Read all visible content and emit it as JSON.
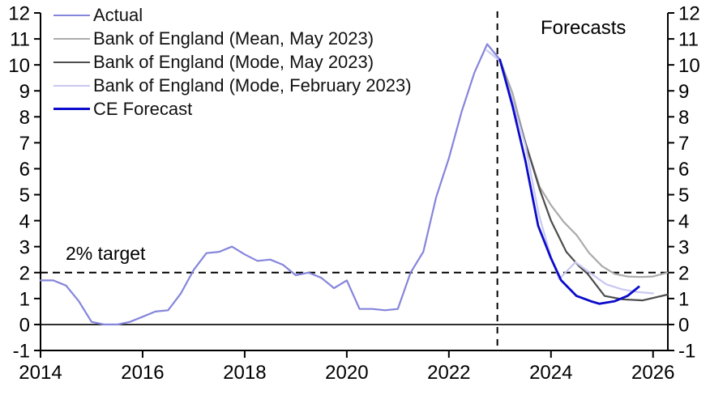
{
  "chart_data": {
    "type": "line",
    "title": "",
    "xlabel": "",
    "ylabel": "",
    "grid": false,
    "legend_position": "top-left inside plot",
    "x_axis": {
      "range": [
        2014,
        2026.29
      ],
      "ticks": [
        2014,
        2016,
        2018,
        2020,
        2022,
        2024,
        2026
      ]
    },
    "y_axis": {
      "range": [
        -1,
        12
      ],
      "ticks": [
        -1,
        0,
        1,
        2,
        3,
        4,
        5,
        6,
        7,
        8,
        9,
        10,
        11,
        12
      ],
      "sides": [
        "left",
        "right"
      ]
    },
    "reference_lines": {
      "zero_line_y": 0,
      "target_line_y": 2,
      "forecast_divider_x": 2022.95
    },
    "annotations": {
      "target_label": "2% target",
      "forecasts_label": "Forecasts"
    },
    "series": [
      {
        "name": "Actual",
        "color": "#8585DC",
        "width": 2.2,
        "points": [
          [
            2014.0,
            1.7
          ],
          [
            2014.25,
            1.7
          ],
          [
            2014.5,
            1.5
          ],
          [
            2014.75,
            0.9
          ],
          [
            2015.0,
            0.1
          ],
          [
            2015.25,
            0.0
          ],
          [
            2015.5,
            0.0
          ],
          [
            2015.75,
            0.1
          ],
          [
            2016.0,
            0.3
          ],
          [
            2016.25,
            0.5
          ],
          [
            2016.5,
            0.55
          ],
          [
            2016.75,
            1.2
          ],
          [
            2017.0,
            2.1
          ],
          [
            2017.25,
            2.75
          ],
          [
            2017.5,
            2.8
          ],
          [
            2017.75,
            3.0
          ],
          [
            2018.0,
            2.7
          ],
          [
            2018.25,
            2.45
          ],
          [
            2018.5,
            2.5
          ],
          [
            2018.75,
            2.3
          ],
          [
            2019.0,
            1.9
          ],
          [
            2019.25,
            2.0
          ],
          [
            2019.5,
            1.8
          ],
          [
            2019.75,
            1.4
          ],
          [
            2020.0,
            1.7
          ],
          [
            2020.25,
            0.6
          ],
          [
            2020.5,
            0.6
          ],
          [
            2020.75,
            0.55
          ],
          [
            2021.0,
            0.6
          ],
          [
            2021.25,
            2.0
          ],
          [
            2021.5,
            2.8
          ],
          [
            2021.75,
            4.9
          ],
          [
            2022.0,
            6.4
          ],
          [
            2022.25,
            8.2
          ],
          [
            2022.5,
            9.7
          ],
          [
            2022.75,
            10.8
          ],
          [
            2023.0,
            10.2
          ]
        ]
      },
      {
        "name": "Bank of England (Mean, May 2023)",
        "color": "#ABABAB",
        "width": 2.2,
        "points": [
          [
            2023.0,
            10.2
          ],
          [
            2023.25,
            8.9
          ],
          [
            2023.5,
            7.0
          ],
          [
            2023.78,
            5.3
          ],
          [
            2024.0,
            4.6
          ],
          [
            2024.25,
            3.95
          ],
          [
            2024.5,
            3.45
          ],
          [
            2024.75,
            2.75
          ],
          [
            2025.0,
            2.25
          ],
          [
            2025.25,
            1.95
          ],
          [
            2025.5,
            1.85
          ],
          [
            2025.75,
            1.83
          ],
          [
            2026.0,
            1.85
          ],
          [
            2026.28,
            2.0
          ]
        ]
      },
      {
        "name": "Bank of England (Mode, May 2023)",
        "color": "#4D4D4D",
        "width": 2.2,
        "points": [
          [
            2023.0,
            10.2
          ],
          [
            2023.25,
            8.6
          ],
          [
            2023.5,
            7.0
          ],
          [
            2023.78,
            5.2
          ],
          [
            2024.0,
            4.0
          ],
          [
            2024.3,
            2.8
          ],
          [
            2024.55,
            2.25
          ],
          [
            2024.72,
            1.95
          ],
          [
            2025.05,
            1.1
          ],
          [
            2025.4,
            0.97
          ],
          [
            2025.8,
            0.93
          ],
          [
            2026.28,
            1.15
          ]
        ]
      },
      {
        "name": "Bank of England (Mode, February 2023)",
        "color": "#C8C8F2",
        "width": 2.2,
        "points": [
          [
            2022.75,
            10.55
          ],
          [
            2023.0,
            10.15
          ],
          [
            2023.25,
            8.6
          ],
          [
            2023.5,
            6.9
          ],
          [
            2023.76,
            4.25
          ],
          [
            2024.0,
            2.6
          ],
          [
            2024.16,
            1.75
          ],
          [
            2024.48,
            2.4
          ],
          [
            2024.76,
            2.0
          ],
          [
            2025.08,
            1.55
          ],
          [
            2025.4,
            1.35
          ],
          [
            2025.7,
            1.25
          ],
          [
            2026.0,
            1.2
          ]
        ]
      },
      {
        "name": "CE Forecast",
        "color": "#0B0BCB",
        "width": 2.8,
        "points": [
          [
            2023.0,
            10.2
          ],
          [
            2023.25,
            8.4
          ],
          [
            2023.5,
            6.3
          ],
          [
            2023.75,
            3.8
          ],
          [
            2024.0,
            2.55
          ],
          [
            2024.2,
            1.7
          ],
          [
            2024.5,
            1.1
          ],
          [
            2024.78,
            0.9
          ],
          [
            2024.95,
            0.8
          ],
          [
            2025.25,
            0.9
          ],
          [
            2025.5,
            1.1
          ],
          [
            2025.72,
            1.45
          ]
        ]
      }
    ]
  }
}
